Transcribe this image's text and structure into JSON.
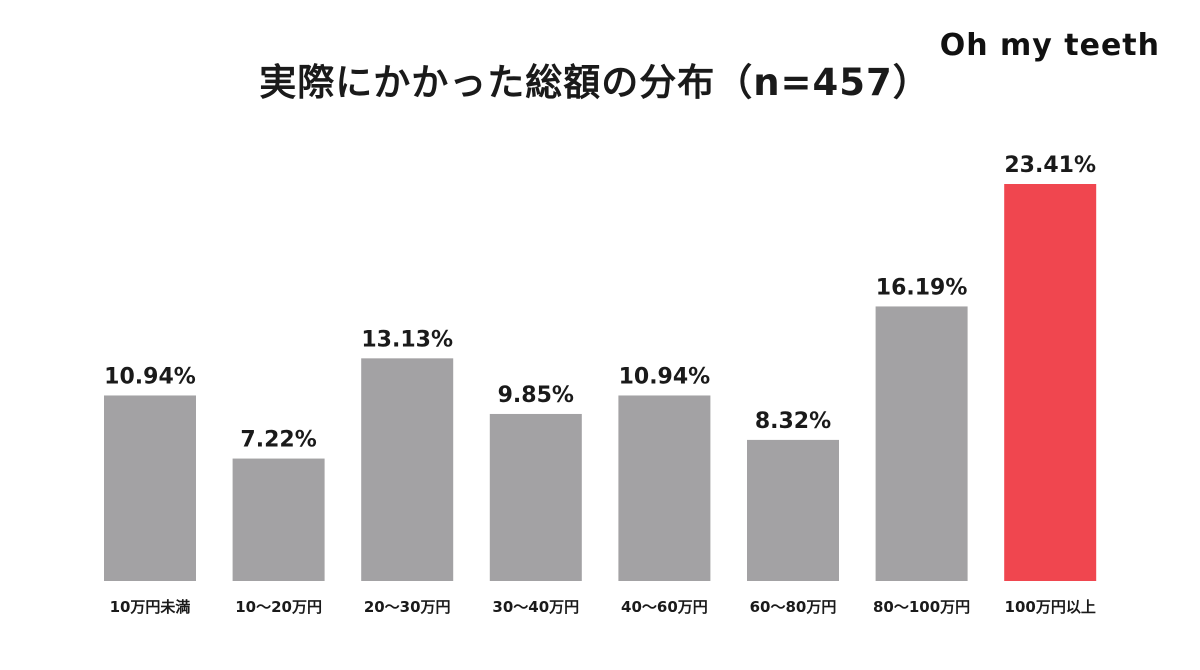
{
  "brand": "Oh my teeth",
  "colors": {
    "bar_default": "#a3a2a4",
    "bar_highlight": "#f0464f"
  },
  "chart_data": {
    "type": "bar",
    "title": "実際にかかった総額の分布（n=457）",
    "xlabel": "",
    "ylabel": "",
    "categories": [
      "10万円未満",
      "10〜20万円",
      "20〜30万円",
      "30〜40万円",
      "40〜60万円",
      "60〜80万円",
      "80〜100万円",
      "100万円以上"
    ],
    "values": [
      10.94,
      7.22,
      13.13,
      9.85,
      10.94,
      8.32,
      16.19,
      23.41
    ],
    "value_labels": [
      "10.94%",
      "7.22%",
      "13.13%",
      "9.85%",
      "10.94%",
      "8.32%",
      "16.19%",
      "23.41%"
    ],
    "highlight_index": 7,
    "ylim": [
      0,
      25
    ],
    "grid": false,
    "legend": "none"
  }
}
